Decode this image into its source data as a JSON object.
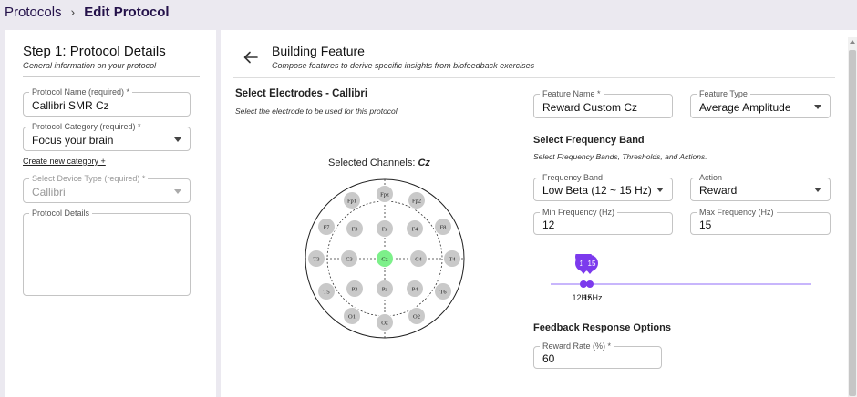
{
  "breadcrumb": {
    "root": "Protocols",
    "separator": "›",
    "current": "Edit Protocol"
  },
  "left_panel": {
    "title": "Step 1: Protocol Details",
    "subtitle": "General information on your protocol",
    "protocol_name": {
      "label": "Protocol Name (required) *",
      "value": "Callibri SMR Cz"
    },
    "protocol_category": {
      "label": "Protocol Category (required) *",
      "value": "Focus your brain"
    },
    "create_category_link": "Create new category +",
    "device_type": {
      "label": "Select Device Type (required) *",
      "value": "Callibri"
    },
    "protocol_details": {
      "label": "Protocol Details",
      "value": ""
    }
  },
  "right_panel": {
    "title": "Building Feature",
    "subtitle": "Compose features to derive specific insights from biofeedback exercises",
    "electrodes": {
      "title": "Select Electrodes - Callibri",
      "subtitle": "Select the electrode to be used for this protocol.",
      "selected_label": "Selected Channels: ",
      "selected_value": "Cz",
      "channels": [
        "Fp1",
        "Fpz",
        "Fp2",
        "F7",
        "F3",
        "Fz",
        "F4",
        "F8",
        "T3",
        "C3",
        "Cz",
        "C4",
        "T4",
        "T5",
        "P3",
        "Pz",
        "P4",
        "T6",
        "O1",
        "Oz",
        "O2"
      ],
      "selected": "Cz",
      "colors": {
        "selected": "#7df08a",
        "unselected": "#c9c9c9"
      }
    },
    "feature_name": {
      "label": "Feature Name *",
      "value": "Reward Custom Cz"
    },
    "feature_type": {
      "label": "Feature Type",
      "value": "Average Amplitude"
    },
    "frequency": {
      "title": "Select Frequency Band",
      "subtitle": "Select Frequency Bands, Thresholds, and Actions.",
      "band": {
        "label": "Frequency Band",
        "value": "Low Beta (12 ~ 15 Hz)"
      },
      "action": {
        "label": "Action",
        "value": "Reward"
      },
      "min": {
        "label": "Min Frequency (Hz)",
        "value": "12"
      },
      "max": {
        "label": "Max Frequency (Hz)",
        "value": "15"
      },
      "slider": {
        "low_value": 12,
        "high_value": 15,
        "low_bubble": "12",
        "high_bubble": "15",
        "low_label": "12Hz",
        "high_label": "15Hz",
        "color": "#7c3aed"
      }
    },
    "feedback": {
      "title": "Feedback Response Options",
      "reward_rate": {
        "label": "Reward Rate (%) *",
        "value": "60"
      }
    }
  }
}
